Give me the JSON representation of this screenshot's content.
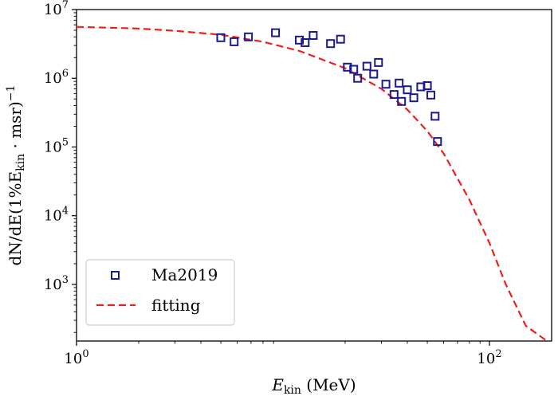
{
  "chart_data": {
    "type": "scatter",
    "title": "",
    "xlabel": {
      "main": "E",
      "sub": "kin",
      "rest": " (MeV)"
    },
    "ylabel": {
      "text": "dN/dE(1%E",
      "sub": "kin",
      "rest": " · msr)",
      "sup": "−1"
    },
    "x_scale": "log",
    "y_scale": "log",
    "xlim": [
      1,
      200
    ],
    "ylim": [
      150,
      10000000
    ],
    "x_ticks": [
      {
        "value": 1,
        "base": "10",
        "exp": "0"
      },
      {
        "value": 100,
        "base": "10",
        "exp": "2"
      }
    ],
    "y_ticks": [
      {
        "value": 1000,
        "base": "10",
        "exp": "3"
      },
      {
        "value": 10000,
        "base": "10",
        "exp": "4"
      },
      {
        "value": 100000,
        "base": "10",
        "exp": "5"
      },
      {
        "value": 1000000,
        "base": "10",
        "exp": "6"
      },
      {
        "value": 10000000,
        "base": "10",
        "exp": "7"
      }
    ],
    "grid": false,
    "legend_position": "lower-left",
    "series": [
      {
        "name": "Ma2019",
        "kind": "scatter",
        "marker": "square-open",
        "color": "#1a1a8c",
        "points": [
          [
            5.0,
            3900000
          ],
          [
            5.8,
            3400000
          ],
          [
            6.8,
            4000000
          ],
          [
            9.2,
            4600000
          ],
          [
            12.0,
            3600000
          ],
          [
            12.8,
            3300000
          ],
          [
            14.0,
            4200000
          ],
          [
            17.0,
            3200000
          ],
          [
            19.0,
            3700000
          ],
          [
            20.5,
            1450000
          ],
          [
            22.0,
            1350000
          ],
          [
            23.0,
            1000000
          ],
          [
            25.5,
            1500000
          ],
          [
            27.5,
            1150000
          ],
          [
            29.0,
            1700000
          ],
          [
            31.5,
            820000
          ],
          [
            34.5,
            580000
          ],
          [
            36.5,
            850000
          ],
          [
            37.5,
            460000
          ],
          [
            40.0,
            680000
          ],
          [
            43.0,
            520000
          ],
          [
            46.5,
            750000
          ],
          [
            50.0,
            780000
          ],
          [
            52.0,
            570000
          ],
          [
            54.5,
            280000
          ],
          [
            56.0,
            120000
          ]
        ]
      },
      {
        "name": "fitting",
        "kind": "line",
        "style": "dashed",
        "color": "#e8211c",
        "points": [
          [
            1,
            5600000
          ],
          [
            2,
            5300000
          ],
          [
            3,
            4900000
          ],
          [
            5,
            4300000
          ],
          [
            8,
            3400000
          ],
          [
            12,
            2500000
          ],
          [
            20,
            1400000
          ],
          [
            30,
            700000
          ],
          [
            40,
            350000
          ],
          [
            50,
            170000
          ],
          [
            60,
            80000
          ],
          [
            80,
            17000
          ],
          [
            100,
            4000
          ],
          [
            120,
            1000
          ],
          [
            150,
            250
          ],
          [
            190,
            150
          ]
        ]
      }
    ]
  }
}
